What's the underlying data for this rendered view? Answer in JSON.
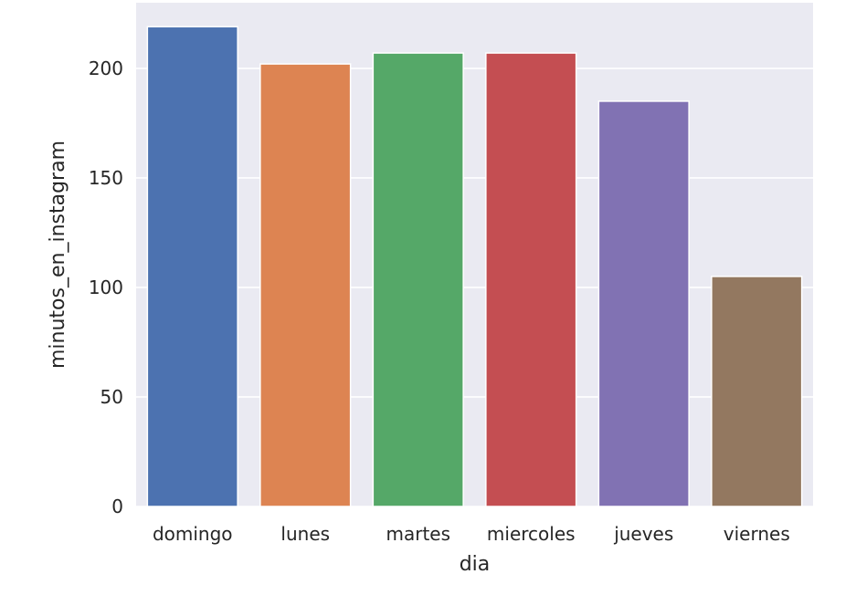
{
  "chart_data": {
    "type": "bar",
    "title": "",
    "xlabel": "dia",
    "ylabel": "minutos_en_instagram",
    "categories": [
      "domingo",
      "lunes",
      "martes",
      "miercoles",
      "jueves",
      "viernes"
    ],
    "values": [
      219,
      202,
      207,
      207,
      185,
      105
    ],
    "colors": [
      "#4c72b0",
      "#dd8452",
      "#55a868",
      "#c44e52",
      "#8172b3",
      "#937860"
    ],
    "yticks": [
      0,
      50,
      100,
      150,
      200
    ],
    "ylim": [
      0,
      229.95
    ],
    "grid": true,
    "background": "#eaeaf2"
  }
}
